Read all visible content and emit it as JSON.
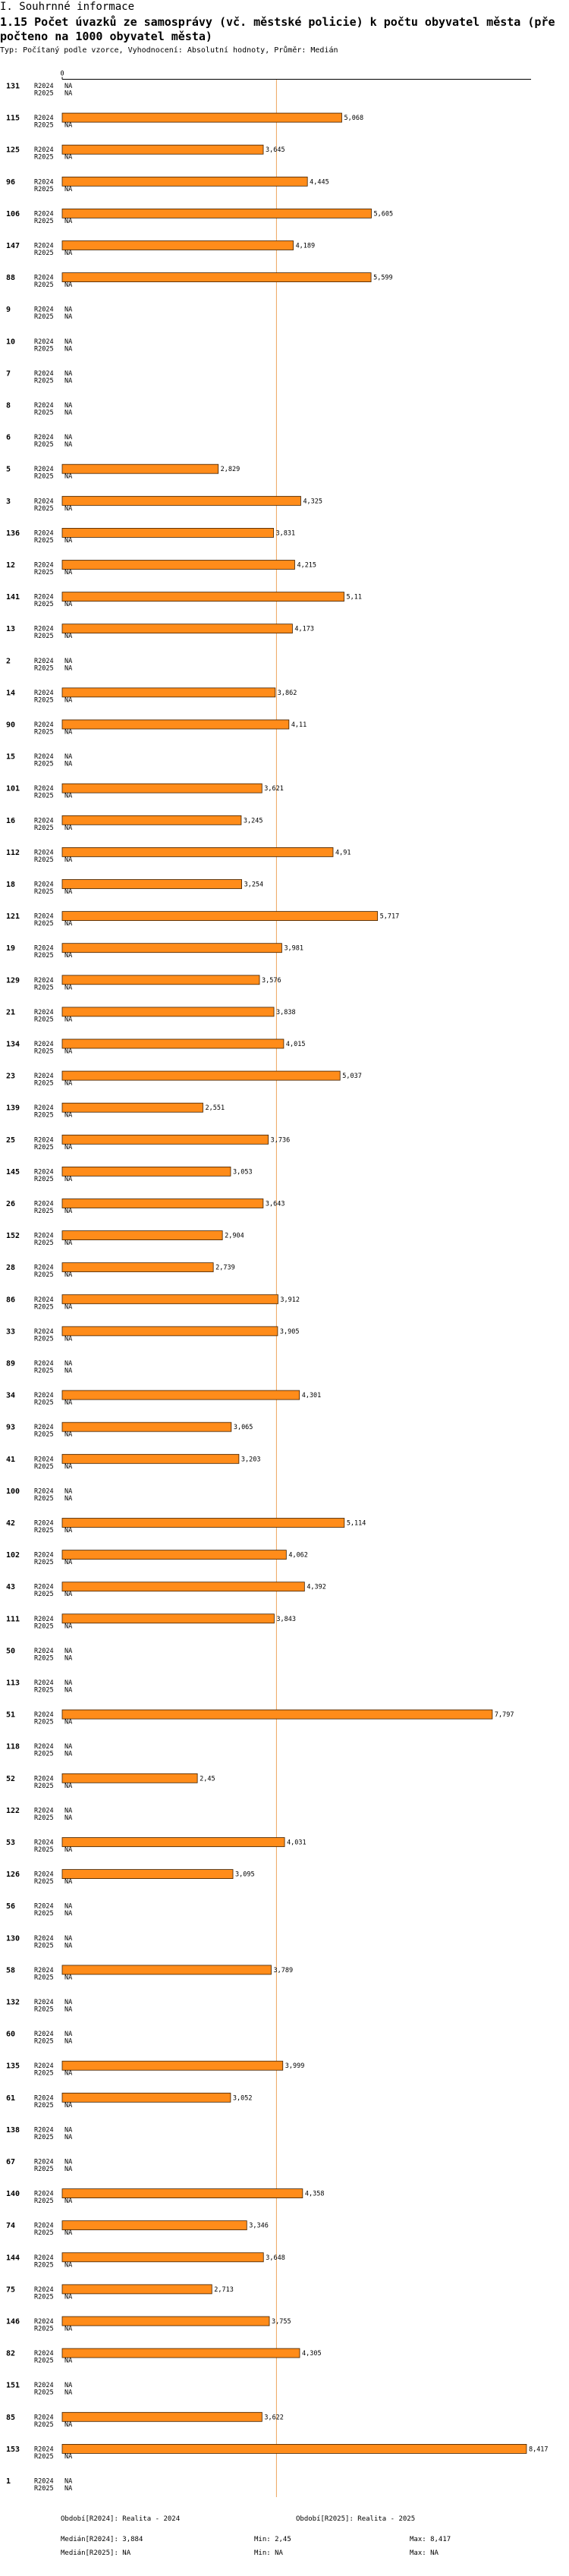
{
  "page": {
    "section": "I. Souhrnné informace",
    "meta": "Typ: Počítaný podle vzorce, Vyhodnocení: Absolutní hodnoty, Průměr: Medián"
  },
  "chart_data": {
    "type": "bar",
    "orientation": "horizontal",
    "title_lines": [
      "1.15 Počet úvazků ze samosprávy (vč. městské policie) k počtu obyvatel města (pře",
      "počteno na 1000 obyvatel města)"
    ],
    "xlim": [
      0,
      8.5
    ],
    "x_ticks": [
      0
    ],
    "median": {
      "R2024": 3.884,
      "R2025": null
    },
    "na_label": "NA",
    "categories": [
      "131",
      "115",
      "125",
      "96",
      "106",
      "147",
      "88",
      "9",
      "10",
      "7",
      "8",
      "6",
      "5",
      "3",
      "136",
      "12",
      "141",
      "13",
      "2",
      "14",
      "90",
      "15",
      "101",
      "16",
      "112",
      "18",
      "121",
      "19",
      "129",
      "21",
      "134",
      "23",
      "139",
      "25",
      "145",
      "26",
      "152",
      "28",
      "86",
      "33",
      "89",
      "34",
      "93",
      "41",
      "100",
      "42",
      "102",
      "43",
      "111",
      "50",
      "113",
      "51",
      "118",
      "52",
      "122",
      "53",
      "126",
      "56",
      "130",
      "58",
      "132",
      "60",
      "135",
      "61",
      "138",
      "67",
      "140",
      "74",
      "144",
      "75",
      "146",
      "82",
      "151",
      "85",
      "153",
      "1"
    ],
    "series": [
      {
        "name": "R2024",
        "values": [
          null,
          5.068,
          3.645,
          4.445,
          5.605,
          4.189,
          5.599,
          null,
          null,
          null,
          null,
          null,
          2.829,
          4.325,
          3.831,
          4.215,
          5.11,
          4.173,
          null,
          3.862,
          4.11,
          null,
          3.621,
          3.245,
          4.91,
          3.254,
          5.717,
          3.981,
          3.576,
          3.838,
          4.015,
          5.037,
          2.551,
          3.736,
          3.053,
          3.643,
          2.904,
          2.739,
          3.912,
          3.905,
          null,
          4.301,
          3.065,
          3.203,
          null,
          5.114,
          4.062,
          4.392,
          3.843,
          null,
          null,
          7.797,
          null,
          2.45,
          null,
          4.031,
          3.095,
          null,
          null,
          3.789,
          null,
          null,
          3.999,
          3.052,
          null,
          null,
          4.358,
          3.346,
          3.648,
          2.713,
          3.755,
          4.305,
          null,
          3.622,
          8.417,
          null
        ],
        "labels": [
          null,
          "5,068",
          "3,645",
          "4,445",
          "5,605",
          "4,189",
          "5,599",
          null,
          null,
          null,
          null,
          null,
          "2,829",
          "4,325",
          "3,831",
          "4,215",
          "5,11",
          "4,173",
          null,
          "3,862",
          "4,11",
          null,
          "3,621",
          "3,245",
          "4,91",
          "3,254",
          "5,717",
          "3,981",
          "3,576",
          "3,838",
          "4,015",
          "5,037",
          "2,551",
          "3,736",
          "3,053",
          "3,643",
          "2,904",
          "2,739",
          "3,912",
          "3,905",
          null,
          "4,301",
          "3,065",
          "3,203",
          null,
          "5,114",
          "4,062",
          "4,392",
          "3,843",
          null,
          null,
          "7,797",
          null,
          "2,45",
          null,
          "4,031",
          "3,095",
          null,
          null,
          "3,789",
          null,
          null,
          "3,999",
          "3,052",
          null,
          null,
          "4,358",
          "3,346",
          "3,648",
          "2,713",
          "3,755",
          "4,305",
          null,
          "3,622",
          "8,417",
          null
        ]
      },
      {
        "name": "R2025",
        "values": [
          null,
          null,
          null,
          null,
          null,
          null,
          null,
          null,
          null,
          null,
          null,
          null,
          null,
          null,
          null,
          null,
          null,
          null,
          null,
          null,
          null,
          null,
          null,
          null,
          null,
          null,
          null,
          null,
          null,
          null,
          null,
          null,
          null,
          null,
          null,
          null,
          null,
          null,
          null,
          null,
          null,
          null,
          null,
          null,
          null,
          null,
          null,
          null,
          null,
          null,
          null,
          null,
          null,
          null,
          null,
          null,
          null,
          null,
          null,
          null,
          null,
          null,
          null,
          null,
          null,
          null,
          null,
          null,
          null,
          null,
          null,
          null,
          null,
          null,
          null,
          null
        ]
      }
    ]
  },
  "footer": {
    "periods": [
      "Období[R2024]: Realita - 2024",
      "Období[R2025]: Realita - 2025"
    ],
    "stats": [
      {
        "median": "Medián[R2024]: 3,884",
        "min": "Min: 2,45",
        "max": "Max: 8,417"
      },
      {
        "median": "Medián[R2025]: NA",
        "min": "Min: NA",
        "max": "Max: NA"
      }
    ]
  },
  "colors": {
    "bar_fill": "#ff8c1a",
    "bar_stroke": "#3c1e00",
    "median_line": "#eda45c",
    "axis": "#000000"
  }
}
